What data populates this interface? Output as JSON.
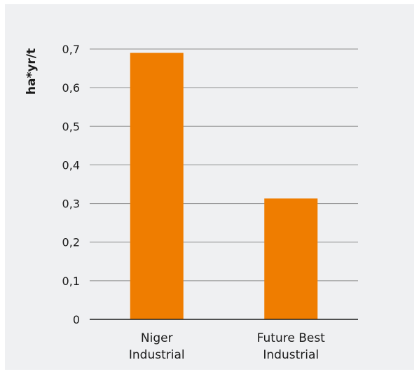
{
  "chart_data": {
    "type": "bar",
    "ylabel": "ha*yr/t",
    "xlabel": "",
    "categories": [
      [
        "Niger",
        "Industrial"
      ],
      [
        "Future Best",
        "Industrial"
      ]
    ],
    "values": [
      0.69,
      0.313
    ],
    "ylim": [
      0,
      0.7
    ],
    "yticks": [
      "0",
      "0,1",
      "0,2",
      "0,3",
      "0,4",
      "0,5",
      "0,6",
      "0,7"
    ],
    "grid": true,
    "bar_color": "#ef7d00",
    "background_color": "#eff0f2"
  }
}
